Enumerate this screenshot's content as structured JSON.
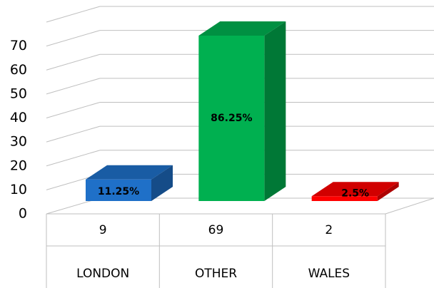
{
  "chart_data": {
    "type": "bar3d",
    "categories": [
      "LONDON",
      "OTHER",
      "WALES"
    ],
    "values": [
      9,
      69,
      2
    ],
    "point_labels": [
      "11.25%",
      "86.25%",
      "2.5%"
    ],
    "colors": [
      "#1f70c8",
      "#00b050",
      "#ff0000"
    ],
    "ylim": [
      0,
      80
    ],
    "yticks": [
      0,
      10,
      20,
      30,
      40,
      50,
      60,
      70
    ],
    "grid": true
  }
}
